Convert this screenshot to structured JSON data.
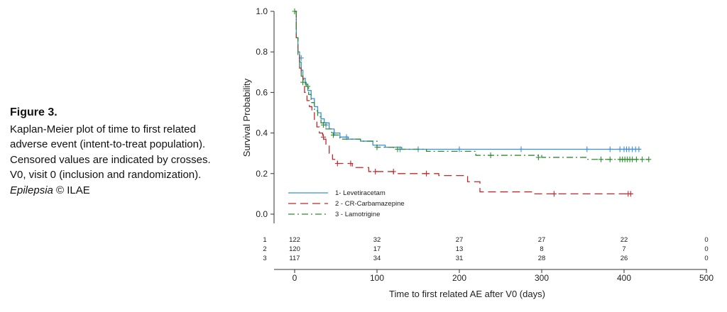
{
  "caption": {
    "label": "Figure 3.",
    "text": "Kaplan-Meier plot of time to first related adverse event (intent-to-treat population). Censored values are indicated by crosses. V0, visit 0 (inclusion and randomization).",
    "journal": "Epilepsia",
    "copyright": "© ILAE"
  },
  "chart_data": {
    "type": "line",
    "subtype": "kaplan-meier step plot",
    "xlabel": "Time to first related AE after V0 (days)",
    "ylabel": "Survival Probability",
    "xlim": [
      0,
      500
    ],
    "ylim": [
      0,
      1
    ],
    "x_ticks": [
      "0",
      "100",
      "200",
      "300",
      "400",
      "500"
    ],
    "y_ticks": [
      "0.0",
      "0.2",
      "0.4",
      "0.6",
      "0.8",
      "1.0"
    ],
    "grid": false,
    "legend_position": "bottom-left",
    "series": [
      {
        "name": "1- Levetiracetam",
        "color": "#3a8fd8",
        "dash": "solid",
        "steps": [
          [
            0,
            1.0
          ],
          [
            2,
            0.87
          ],
          [
            4,
            0.8
          ],
          [
            6,
            0.75
          ],
          [
            8,
            0.71
          ],
          [
            10,
            0.67
          ],
          [
            13,
            0.64
          ],
          [
            16,
            0.61
          ],
          [
            20,
            0.57
          ],
          [
            24,
            0.53
          ],
          [
            28,
            0.5
          ],
          [
            32,
            0.47
          ],
          [
            36,
            0.45
          ],
          [
            42,
            0.42
          ],
          [
            48,
            0.4
          ],
          [
            55,
            0.38
          ],
          [
            65,
            0.37
          ],
          [
            80,
            0.36
          ],
          [
            95,
            0.34
          ],
          [
            110,
            0.33
          ],
          [
            130,
            0.32
          ],
          [
            420,
            0.32
          ]
        ],
        "censored": [
          [
            8,
            0.77
          ],
          [
            38,
            0.44
          ],
          [
            48,
            0.4
          ],
          [
            63,
            0.38
          ],
          [
            128,
            0.32
          ],
          [
            150,
            0.32
          ],
          [
            200,
            0.32
          ],
          [
            275,
            0.32
          ],
          [
            355,
            0.32
          ],
          [
            383,
            0.32
          ],
          [
            395,
            0.32
          ],
          [
            400,
            0.32
          ],
          [
            403,
            0.32
          ],
          [
            406,
            0.32
          ],
          [
            410,
            0.32
          ],
          [
            414,
            0.32
          ],
          [
            418,
            0.32
          ]
        ]
      },
      {
        "name": "2 - CR-Carbamazepine",
        "color": "#c0282c",
        "dash": "long-dash",
        "steps": [
          [
            0,
            1.0
          ],
          [
            2,
            0.87
          ],
          [
            4,
            0.79
          ],
          [
            6,
            0.72
          ],
          [
            8,
            0.69
          ],
          [
            10,
            0.64
          ],
          [
            12,
            0.6
          ],
          [
            15,
            0.56
          ],
          [
            18,
            0.53
          ],
          [
            21,
            0.5
          ],
          [
            24,
            0.46
          ],
          [
            27,
            0.43
          ],
          [
            30,
            0.4
          ],
          [
            34,
            0.37
          ],
          [
            38,
            0.34
          ],
          [
            42,
            0.3
          ],
          [
            46,
            0.27
          ],
          [
            52,
            0.25
          ],
          [
            70,
            0.23
          ],
          [
            90,
            0.21
          ],
          [
            120,
            0.2
          ],
          [
            175,
            0.19
          ],
          [
            210,
            0.16
          ],
          [
            225,
            0.11
          ],
          [
            290,
            0.1
          ],
          [
            410,
            0.1
          ]
        ],
        "censored": [
          [
            35,
            0.38
          ],
          [
            52,
            0.25
          ],
          [
            68,
            0.25
          ],
          [
            98,
            0.21
          ],
          [
            120,
            0.21
          ],
          [
            160,
            0.2
          ],
          [
            315,
            0.1
          ],
          [
            405,
            0.1
          ],
          [
            408,
            0.1
          ]
        ]
      },
      {
        "name": "3 - Lamotrigine",
        "color": "#2e8b2e",
        "dash": "dash-dot",
        "steps": [
          [
            0,
            1.0
          ],
          [
            2,
            0.87
          ],
          [
            4,
            0.78
          ],
          [
            6,
            0.72
          ],
          [
            8,
            0.68
          ],
          [
            11,
            0.65
          ],
          [
            14,
            0.63
          ],
          [
            17,
            0.59
          ],
          [
            20,
            0.55
          ],
          [
            24,
            0.51
          ],
          [
            28,
            0.48
          ],
          [
            32,
            0.45
          ],
          [
            38,
            0.42
          ],
          [
            45,
            0.39
          ],
          [
            55,
            0.37
          ],
          [
            80,
            0.36
          ],
          [
            100,
            0.33
          ],
          [
            120,
            0.32
          ],
          [
            160,
            0.31
          ],
          [
            220,
            0.29
          ],
          [
            300,
            0.28
          ],
          [
            355,
            0.27
          ],
          [
            430,
            0.27
          ]
        ],
        "censored": [
          [
            0,
            1.0
          ],
          [
            10,
            0.65
          ],
          [
            16,
            0.63
          ],
          [
            35,
            0.44
          ],
          [
            47,
            0.39
          ],
          [
            100,
            0.33
          ],
          [
            125,
            0.32
          ],
          [
            238,
            0.29
          ],
          [
            296,
            0.28
          ],
          [
            372,
            0.27
          ],
          [
            383,
            0.27
          ],
          [
            395,
            0.27
          ],
          [
            398,
            0.27
          ],
          [
            401,
            0.27
          ],
          [
            404,
            0.27
          ],
          [
            407,
            0.27
          ],
          [
            410,
            0.27
          ],
          [
            415,
            0.27
          ],
          [
            422,
            0.27
          ],
          [
            430,
            0.27
          ]
        ]
      }
    ],
    "number_at_risk": {
      "times": [
        0,
        100,
        200,
        300,
        400,
        500
      ],
      "rows": [
        {
          "label": "1",
          "counts": [
            "122",
            "32",
            "27",
            "27",
            "22",
            "0"
          ]
        },
        {
          "label": "2",
          "counts": [
            "120",
            "17",
            "13",
            "8",
            "7",
            "0"
          ]
        },
        {
          "label": "3",
          "counts": [
            "117",
            "34",
            "31",
            "28",
            "26",
            "0"
          ]
        }
      ]
    }
  }
}
